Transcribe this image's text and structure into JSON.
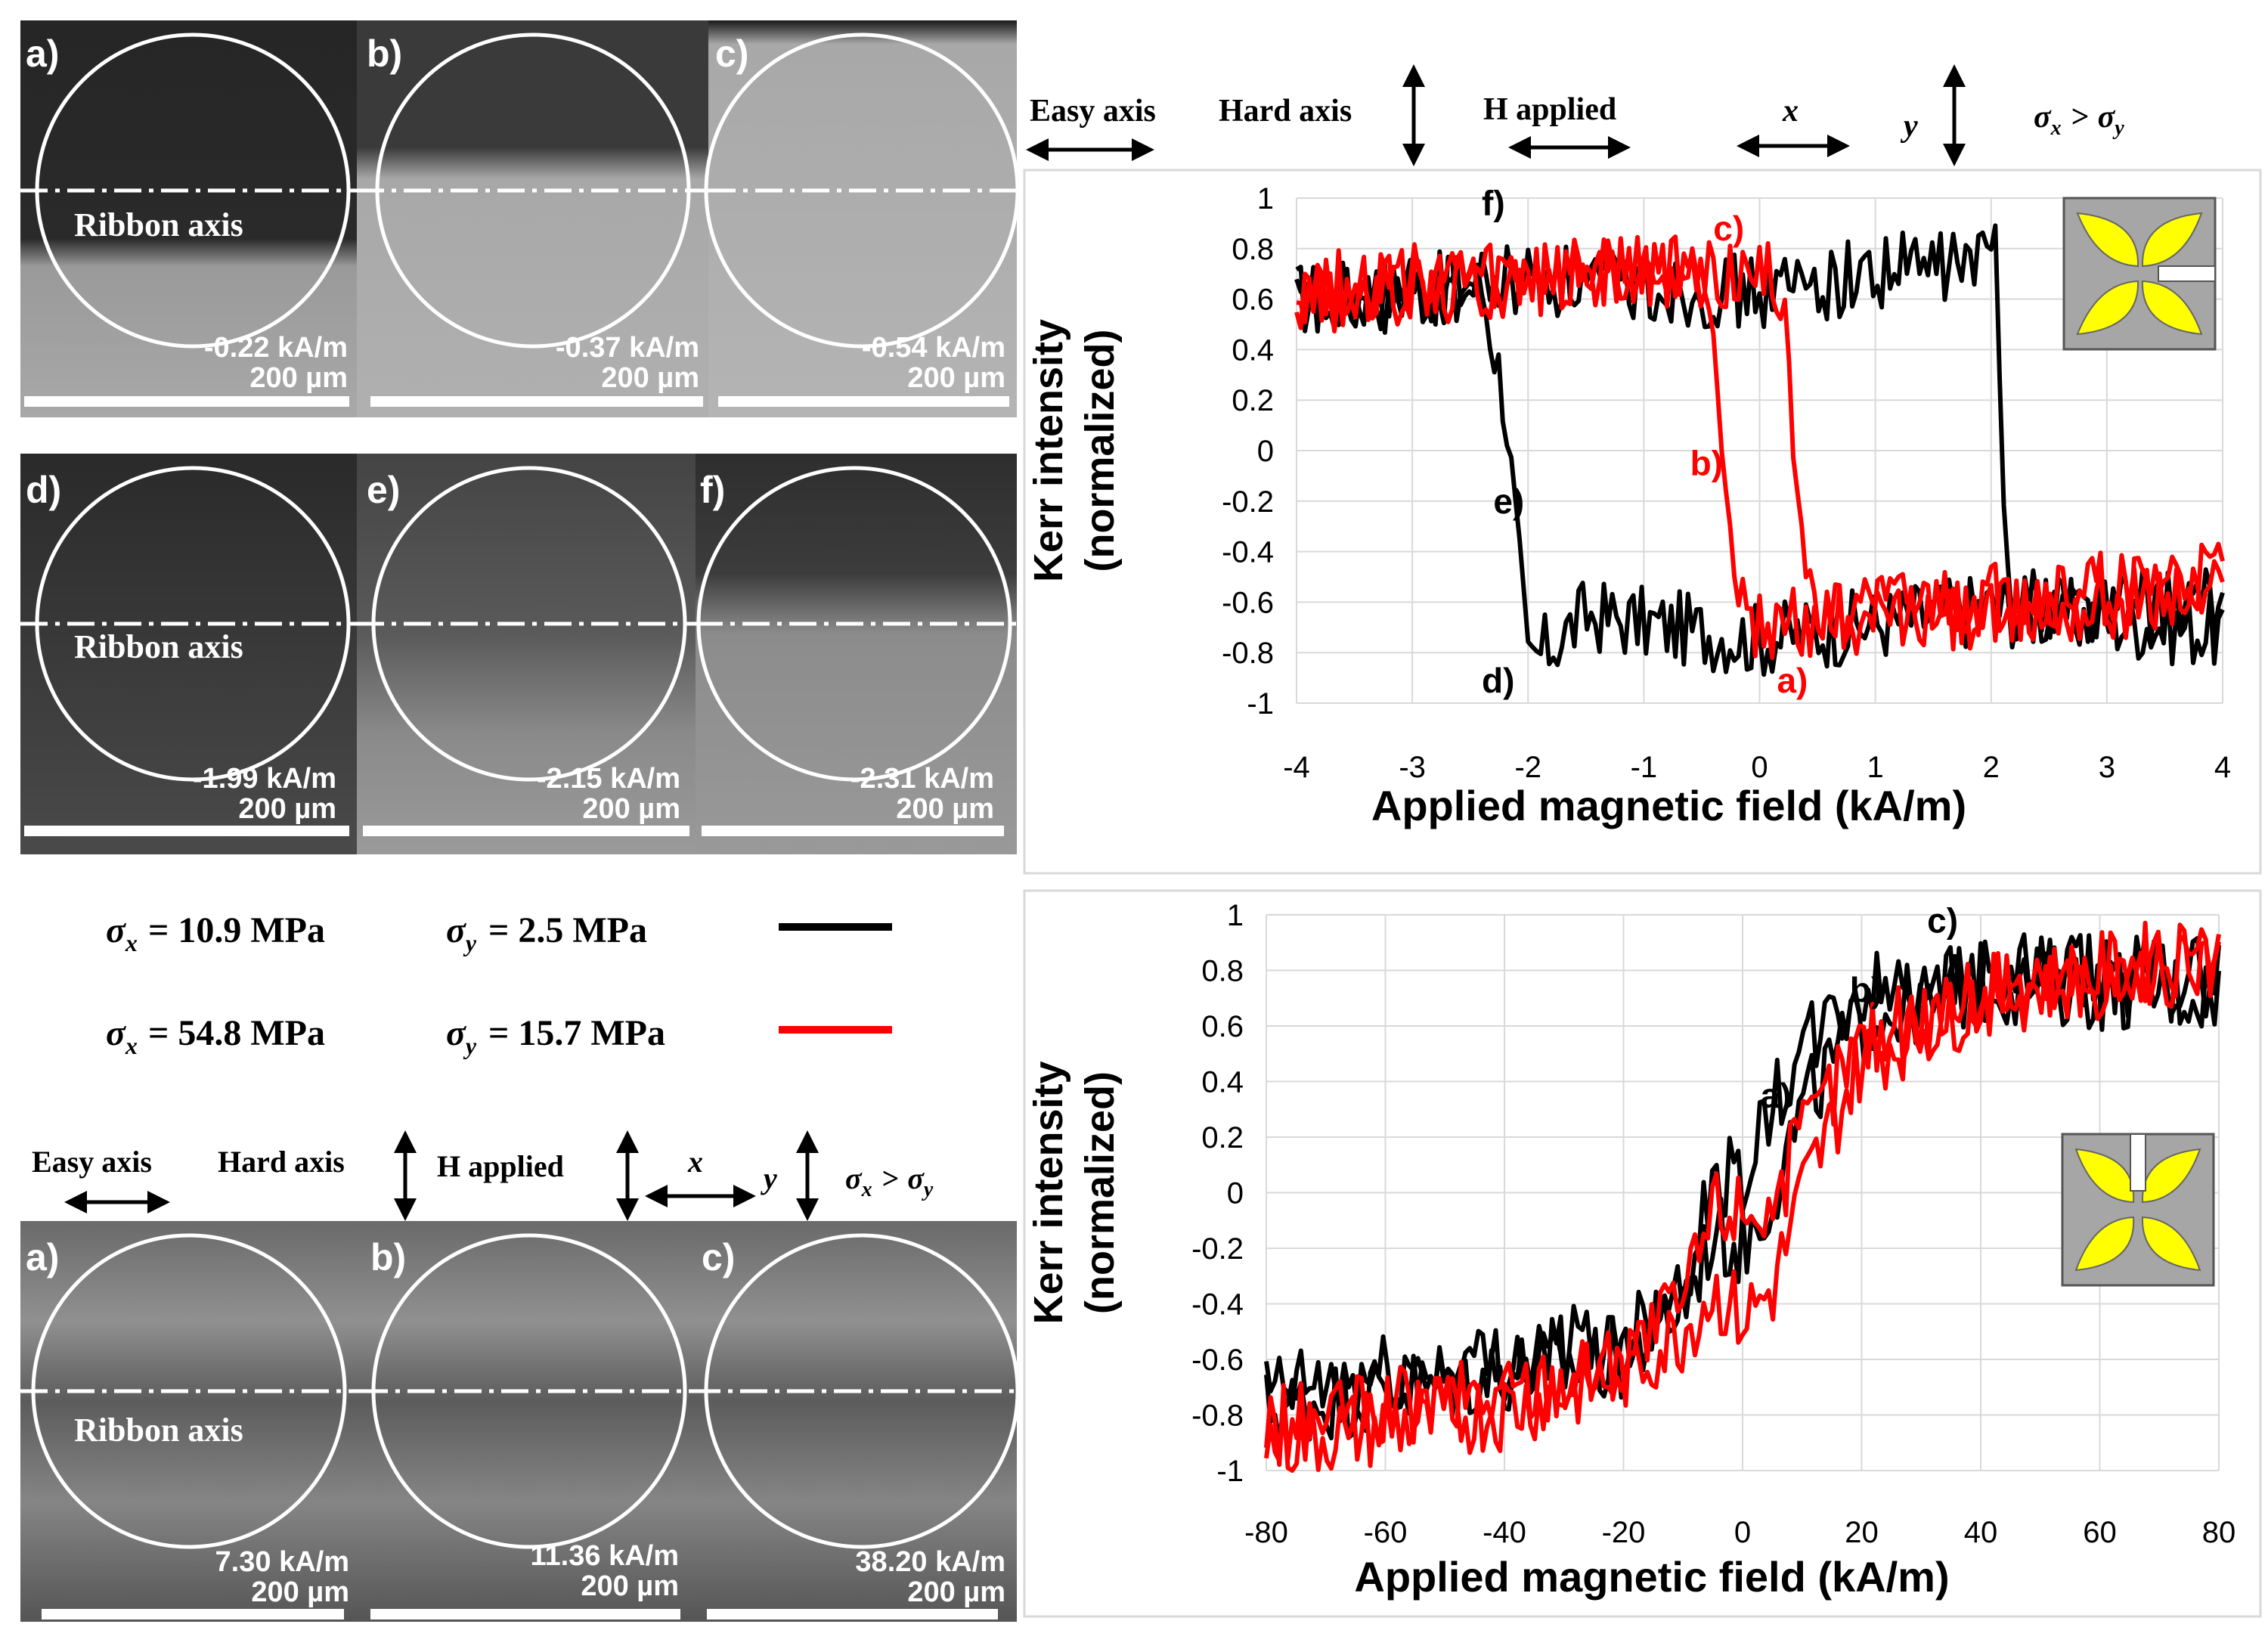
{
  "figure": {
    "top_images": [
      {
        "label": "a)",
        "field": "-0.22 kA/m",
        "scale": "200 µm",
        "axis_label": "Ribbon  axis"
      },
      {
        "label": "b)",
        "field": "-0.37 kA/m",
        "scale": "200 µm"
      },
      {
        "label": "c)",
        "field": "-0.54 kA/m",
        "scale": "200 µm"
      },
      {
        "label": "d)",
        "field": "-1.99 kA/m",
        "scale": "200 µm",
        "axis_label": "Ribbon  axis"
      },
      {
        "label": "e)",
        "field": "-2.15 kA/m",
        "scale": "200 µm"
      },
      {
        "label": "f)",
        "field": "-2.31 kA/m",
        "scale": "200 µm"
      }
    ],
    "bottom_images": [
      {
        "label": "a)",
        "field": "7.30 kA/m",
        "scale": "200 µm",
        "axis_label": "Ribbon  axis"
      },
      {
        "label": "b)",
        "field": "11.36 kA/m",
        "scale": "200 µm"
      },
      {
        "label": "c)",
        "field": "38.20 kA/m",
        "scale": "200 µm"
      }
    ],
    "header_top": {
      "easy_axis": "Easy axis",
      "hard_axis": "Hard axis",
      "h_applied": "H applied",
      "x": "x",
      "y": "y",
      "sigma_x": "σ",
      "sub_x": "x",
      "gt": ">",
      "sigma_y": "σ",
      "sub_y": "y"
    },
    "header_bottom": {
      "easy_axis": "Easy axis",
      "hard_axis": "Hard axis",
      "h_applied": "H applied",
      "x": "x",
      "y": "y",
      "sigma_x": "σ",
      "sub_x": "x",
      "gt": ">",
      "sigma_y": "σ",
      "sub_y": "y"
    },
    "legend": [
      {
        "sx_sym": "σ",
        "sx_sub": "x",
        "sx_val": "= 10.9 MPa",
        "sy_sym": "σ",
        "sy_sub": "y",
        "sy_val": "= 2.5 MPa",
        "color": "#000000"
      },
      {
        "sx_sym": "σ",
        "sx_sub": "x",
        "sx_val": "= 54.8 MPa",
        "sy_sym": "σ",
        "sy_sub": "y",
        "sy_val": "= 15.7 MPa",
        "color": "#ff0000"
      }
    ],
    "inset_colors": {
      "fill": "#a6a6a6",
      "petal": "#ffff00"
    }
  },
  "chart_data": [
    {
      "type": "line",
      "title": "",
      "xlabel": "Applied  magnetic field (kA/m)",
      "ylabel_line1": "Kerr intensity",
      "ylabel_line2": "(normalized)",
      "xlim": [
        -4,
        4
      ],
      "ylim": [
        -1,
        1
      ],
      "xticks": [
        -4,
        -3,
        -2,
        -1,
        0,
        1,
        2,
        3,
        4
      ],
      "yticks": [
        -1,
        -0.8,
        -0.6,
        -0.4,
        -0.2,
        0,
        0.2,
        0.4,
        0.6,
        0.8,
        1
      ],
      "grid": true,
      "series": [
        {
          "name": "σx = 10.9 MPa σy = 2.5 MPa",
          "color": "#000000",
          "descending": [
            [
              -4,
              0.6
            ],
            [
              -2.4,
              0.65
            ],
            [
              -2.2,
              0.2
            ],
            [
              -2.05,
              -0.6
            ],
            [
              -2.0,
              -0.85
            ],
            [
              -1.5,
              -0.65
            ],
            [
              0,
              -0.75
            ],
            [
              2.0,
              -0.62
            ],
            [
              4,
              -0.72
            ]
          ],
          "ascending": [
            [
              -4,
              0.55
            ],
            [
              -2,
              0.68
            ],
            [
              0,
              0.62
            ],
            [
              1.2,
              0.72
            ],
            [
              2.0,
              0.75
            ],
            [
              2.05,
              0.9
            ],
            [
              2.1,
              -0.2
            ],
            [
              2.2,
              -0.6
            ],
            [
              4,
              -0.62
            ]
          ]
        },
        {
          "name": "σx = 54.8 MPa σy = 15.7 MPa",
          "color": "#ff0000",
          "descending": [
            [
              -4,
              0.65
            ],
            [
              -1,
              0.7
            ],
            [
              -0.45,
              0.68
            ],
            [
              -0.3,
              0.0
            ],
            [
              -0.2,
              -0.55
            ],
            [
              0,
              -0.7
            ],
            [
              2,
              -0.6
            ],
            [
              4,
              -0.5
            ]
          ],
          "ascending": [
            [
              -4,
              0.6
            ],
            [
              -1,
              0.72
            ],
            [
              0,
              0.7
            ],
            [
              0.22,
              0.65
            ],
            [
              0.32,
              -0.1
            ],
            [
              0.45,
              -0.65
            ],
            [
              2,
              -0.65
            ],
            [
              4,
              -0.55
            ]
          ]
        }
      ],
      "annotations": [
        {
          "text": "f)",
          "x": -2.4,
          "y": 0.98,
          "color": "#000000"
        },
        {
          "text": "c)",
          "x": -0.4,
          "y": 0.88,
          "color": "#ff0000"
        },
        {
          "text": "b)",
          "x": -0.6,
          "y": -0.05,
          "color": "#ff0000"
        },
        {
          "text": "e)",
          "x": -2.3,
          "y": -0.2,
          "color": "#000000"
        },
        {
          "text": "d)",
          "x": -2.4,
          "y": -0.91,
          "color": "#000000"
        },
        {
          "text": "a)",
          "x": 0.15,
          "y": -0.91,
          "color": "#ff0000"
        }
      ]
    },
    {
      "type": "line",
      "title": "",
      "xlabel": "Applied  magnetic field (kA/m)",
      "ylabel_line1": "Kerr intensity",
      "ylabel_line2": "(normalized)",
      "xlim": [
        -80,
        80
      ],
      "ylim": [
        -1,
        1
      ],
      "xticks": [
        -80,
        -60,
        -40,
        -20,
        0,
        20,
        40,
        60,
        80
      ],
      "yticks": [
        -1,
        -0.8,
        -0.6,
        -0.4,
        -0.2,
        0,
        0.2,
        0.4,
        0.6,
        0.8,
        1
      ],
      "grid": true,
      "series": [
        {
          "name": "σx = 10.9 MPa σy = 2.5 MPa",
          "color": "#000000",
          "descending": [
            [
              -80,
              -0.72
            ],
            [
              -40,
              -0.6
            ],
            [
              -20,
              -0.52
            ],
            [
              -10,
              -0.3
            ],
            [
              -5,
              0.02
            ],
            [
              0,
              0.08
            ],
            [
              5,
              0.3
            ],
            [
              10,
              0.5
            ],
            [
              20,
              0.72
            ],
            [
              40,
              0.78
            ],
            [
              80,
              0.78
            ]
          ],
          "ascending": [
            [
              -80,
              -0.78
            ],
            [
              -40,
              -0.65
            ],
            [
              -20,
              -0.6
            ],
            [
              -10,
              -0.4
            ],
            [
              -5,
              -0.15
            ],
            [
              0,
              -0.2
            ],
            [
              5,
              0.0
            ],
            [
              10,
              0.3
            ],
            [
              20,
              0.62
            ],
            [
              40,
              0.75
            ],
            [
              80,
              0.72
            ]
          ]
        },
        {
          "name": "σx = 54.8 MPa σy = 15.7 MPa",
          "color": "#ff0000",
          "descending": [
            [
              -80,
              -0.85
            ],
            [
              -40,
              -0.72
            ],
            [
              -20,
              -0.6
            ],
            [
              -10,
              -0.4
            ],
            [
              -5,
              -0.05
            ],
            [
              0,
              -0.05
            ],
            [
              5,
              -0.05
            ],
            [
              10,
              0.2
            ],
            [
              20,
              0.55
            ],
            [
              40,
              0.72
            ],
            [
              80,
              0.82
            ]
          ],
          "ascending": [
            [
              -80,
              -0.9
            ],
            [
              -40,
              -0.78
            ],
            [
              -20,
              -0.65
            ],
            [
              -10,
              -0.5
            ],
            [
              -5,
              -0.35
            ],
            [
              0,
              -0.45
            ],
            [
              5,
              -0.35
            ],
            [
              10,
              0.0
            ],
            [
              20,
              0.48
            ],
            [
              40,
              0.7
            ],
            [
              80,
              0.88
            ]
          ]
        }
      ],
      "annotations": [
        {
          "text": "c)",
          "x": 31,
          "y": 0.98,
          "color": "#000000"
        },
        {
          "text": "b)",
          "x": 18,
          "y": 0.73,
          "color": "#000000"
        },
        {
          "text": "a)",
          "x": 3,
          "y": 0.35,
          "color": "#000000"
        }
      ]
    }
  ]
}
